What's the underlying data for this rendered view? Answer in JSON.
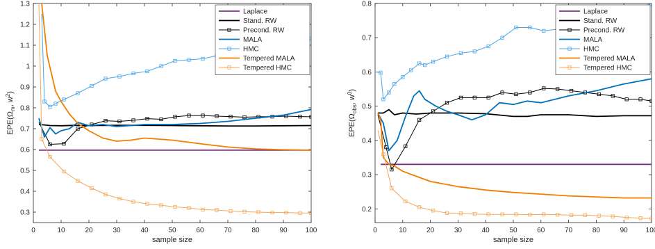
{
  "chart_data": [
    {
      "type": "line",
      "xlabel": "sample size",
      "ylabel_base": "EPE(Ω",
      "ylabel_sub": "m",
      "ylabel_mid": ", w",
      "ylabel_sup": "2",
      "ylabel_end": ")",
      "xlim": [
        0,
        100
      ],
      "ylim": [
        0.25,
        1.3
      ],
      "xticks": [
        0,
        10,
        20,
        30,
        40,
        50,
        60,
        70,
        80,
        90,
        100
      ],
      "yticks": [
        0.3,
        0.4,
        0.5,
        0.6,
        0.7,
        0.8,
        0.9,
        1,
        1.1,
        1.2,
        1.3
      ],
      "legend_position": "top-right",
      "series": [
        {
          "name": "Laplace",
          "color": "#7e2f8e",
          "marker": "none",
          "x": [
            2,
            100
          ],
          "y": [
            0.597,
            0.597
          ]
        },
        {
          "name": "Stand. RW",
          "color": "#000000",
          "marker": "none",
          "x": [
            2,
            4,
            6,
            10,
            15,
            20,
            30,
            40,
            50,
            60,
            70,
            80,
            90,
            100
          ],
          "y": [
            0.72,
            0.718,
            0.715,
            0.714,
            0.716,
            0.715,
            0.716,
            0.716,
            0.715,
            0.714,
            0.713,
            0.713,
            0.714,
            0.715
          ]
        },
        {
          "name": "Precond. RW",
          "color": "#000000",
          "marker": "square",
          "x": [
            2,
            6,
            11,
            16,
            21,
            26,
            31,
            36,
            41,
            46,
            51,
            56,
            61,
            66,
            71,
            76,
            81,
            86,
            91,
            96,
            100
          ],
          "y": [
            0.73,
            0.625,
            0.628,
            0.7,
            0.72,
            0.738,
            0.735,
            0.74,
            0.748,
            0.745,
            0.757,
            0.763,
            0.763,
            0.76,
            0.758,
            0.755,
            0.757,
            0.758,
            0.76,
            0.758,
            0.757
          ]
        },
        {
          "name": "MALA",
          "color": "#0072bd",
          "marker": "none",
          "x": [
            2,
            4,
            6,
            8,
            10,
            13,
            16,
            20,
            25,
            30,
            35,
            40,
            50,
            60,
            70,
            80,
            90,
            100
          ],
          "y": [
            0.75,
            0.66,
            0.705,
            0.675,
            0.69,
            0.7,
            0.73,
            0.715,
            0.72,
            0.71,
            0.715,
            0.72,
            0.72,
            0.725,
            0.735,
            0.75,
            0.765,
            0.792
          ]
        },
        {
          "name": "HMC",
          "color": "#4da6e8",
          "marker": "square",
          "x": [
            3,
            4,
            6,
            8,
            11,
            16,
            21,
            26,
            31,
            36,
            41,
            46,
            51,
            56,
            61,
            66,
            71,
            76,
            81,
            86,
            91,
            96,
            100
          ],
          "y": [
            1.25,
            0.83,
            0.805,
            0.82,
            0.84,
            0.87,
            0.905,
            0.94,
            0.95,
            0.965,
            0.975,
            1.0,
            1.025,
            1.03,
            1.035,
            1.05,
            1.06,
            1.075,
            1.09,
            1.1,
            1.11,
            1.12,
            1.13
          ]
        },
        {
          "name": "Tempered MALA",
          "color": "#f07f00",
          "marker": "none",
          "x": [
            3,
            5,
            8,
            10,
            13,
            16,
            20,
            25,
            30,
            35,
            40,
            45,
            50,
            60,
            70,
            80,
            90,
            100
          ],
          "y": [
            1.3,
            1.05,
            0.88,
            0.83,
            0.77,
            0.725,
            0.69,
            0.655,
            0.64,
            0.645,
            0.655,
            0.65,
            0.645,
            0.628,
            0.612,
            0.603,
            0.599,
            0.597
          ]
        },
        {
          "name": "Tempered HMC",
          "color": "#f5a75a",
          "marker": "square",
          "x": [
            2,
            3,
            6,
            11,
            16,
            21,
            26,
            31,
            36,
            41,
            46,
            51,
            56,
            61,
            66,
            71,
            76,
            81,
            86,
            91,
            96,
            100
          ],
          "y": [
            1.3,
            0.65,
            0.565,
            0.495,
            0.45,
            0.415,
            0.385,
            0.365,
            0.35,
            0.34,
            0.333,
            0.325,
            0.32,
            0.312,
            0.31,
            0.305,
            0.302,
            0.3,
            0.298,
            0.298,
            0.296,
            0.296
          ]
        }
      ]
    },
    {
      "type": "line",
      "xlabel": "sample size",
      "ylabel_base": "EPE(Ω",
      "ylabel_sub": "obs",
      "ylabel_mid": ", w",
      "ylabel_sup": "0",
      "ylabel_end": ")",
      "xlim": [
        0,
        100
      ],
      "ylim": [
        0.16,
        0.8
      ],
      "xticks": [
        0,
        10,
        20,
        30,
        40,
        50,
        60,
        70,
        80,
        90,
        100
      ],
      "yticks": [
        0.2,
        0.3,
        0.4,
        0.5,
        0.6,
        0.7,
        0.8
      ],
      "legend_position": "top-right",
      "series": [
        {
          "name": "Laplace",
          "color": "#7e2f8e",
          "marker": "none",
          "x": [
            2,
            100
          ],
          "y": [
            0.33,
            0.33
          ]
        },
        {
          "name": "Stand. RW",
          "color": "#000000",
          "marker": "none",
          "x": [
            1,
            3,
            5,
            7,
            10,
            15,
            20,
            30,
            40,
            50,
            55,
            60,
            70,
            80,
            90,
            100
          ],
          "y": [
            0.48,
            0.48,
            0.49,
            0.475,
            0.48,
            0.477,
            0.48,
            0.48,
            0.478,
            0.47,
            0.47,
            0.475,
            0.475,
            0.47,
            0.472,
            0.472
          ]
        },
        {
          "name": "Precond. RW",
          "color": "#000000",
          "marker": "square",
          "x": [
            1,
            4,
            6,
            11,
            16,
            21,
            26,
            31,
            36,
            41,
            46,
            51,
            56,
            61,
            66,
            71,
            76,
            81,
            86,
            91,
            96,
            100
          ],
          "y": [
            0.475,
            0.38,
            0.315,
            0.383,
            0.46,
            0.485,
            0.51,
            0.525,
            0.525,
            0.525,
            0.54,
            0.535,
            0.54,
            0.552,
            0.55,
            0.545,
            0.54,
            0.535,
            0.53,
            0.52,
            0.52,
            0.515
          ]
        },
        {
          "name": "MALA",
          "color": "#0072bd",
          "marker": "none",
          "x": [
            1,
            3,
            5,
            8,
            11,
            14,
            16,
            18,
            22,
            26,
            30,
            35,
            40,
            45,
            50,
            55,
            60,
            70,
            80,
            90,
            100
          ],
          "y": [
            0.48,
            0.45,
            0.37,
            0.4,
            0.47,
            0.53,
            0.545,
            0.52,
            0.5,
            0.485,
            0.475,
            0.46,
            0.475,
            0.51,
            0.505,
            0.515,
            0.51,
            0.53,
            0.545,
            0.565,
            0.58
          ]
        },
        {
          "name": "HMC",
          "color": "#4da6e8",
          "marker": "square",
          "x": [
            0,
            2,
            3,
            5,
            7,
            10,
            13,
            16,
            18,
            21,
            26,
            31,
            36,
            41,
            46,
            51,
            56,
            61,
            66,
            71,
            76,
            81,
            86,
            91,
            96,
            100
          ],
          "y": [
            0.6,
            0.598,
            0.52,
            0.54,
            0.565,
            0.585,
            0.605,
            0.625,
            0.62,
            0.63,
            0.645,
            0.655,
            0.66,
            0.675,
            0.7,
            0.73,
            0.73,
            0.72,
            0.725,
            0.735,
            0.74,
            0.755,
            0.765,
            0.775,
            0.79,
            0.8
          ]
        },
        {
          "name": "Tempered MALA",
          "color": "#f07f00",
          "marker": "none",
          "x": [
            1,
            2,
            3,
            5,
            7,
            10,
            15,
            20,
            30,
            40,
            50,
            60,
            70,
            80,
            90,
            100
          ],
          "y": [
            0.48,
            0.46,
            0.35,
            0.33,
            0.325,
            0.31,
            0.295,
            0.28,
            0.265,
            0.255,
            0.248,
            0.243,
            0.238,
            0.235,
            0.232,
            0.232
          ]
        },
        {
          "name": "Tempered HMC",
          "color": "#f5a75a",
          "marker": "square",
          "x": [
            1,
            3,
            6,
            11,
            16,
            21,
            26,
            31,
            36,
            41,
            46,
            51,
            56,
            61,
            66,
            71,
            76,
            81,
            86,
            91,
            96,
            100
          ],
          "y": [
            0.43,
            0.36,
            0.26,
            0.222,
            0.205,
            0.195,
            0.188,
            0.187,
            0.185,
            0.184,
            0.184,
            0.184,
            0.183,
            0.184,
            0.183,
            0.182,
            0.182,
            0.18,
            0.178,
            0.175,
            0.173,
            0.172
          ]
        }
      ]
    }
  ]
}
